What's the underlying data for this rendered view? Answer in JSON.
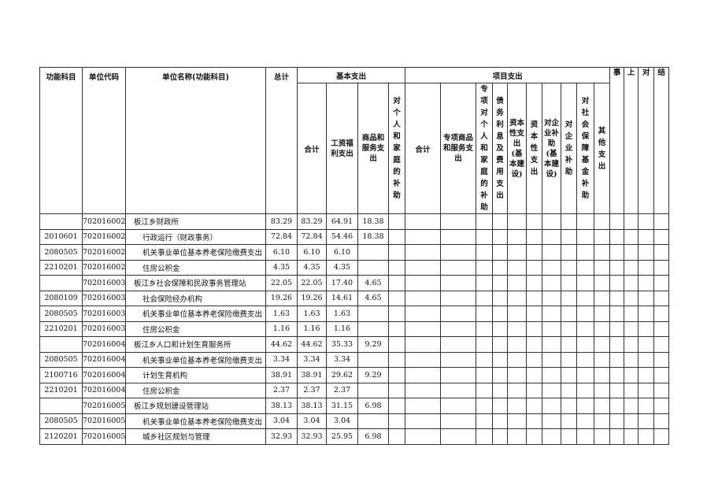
{
  "headers": {
    "func_subject": "功能科目",
    "unit_code": "单位代码",
    "unit_name": "单位名称(功能科目)",
    "total": "总计",
    "basic": "基本支出",
    "project": "项目支出",
    "extra": [
      "事",
      "上",
      "对",
      "结"
    ],
    "basic_cols": [
      "合计",
      "工资福利支出",
      "商品和服务支出",
      "对个人和家庭的补助"
    ],
    "project_cols": [
      "合计",
      "专项商品和服务支出",
      "专项对个人和家庭的补助",
      "债务利息及费用支出",
      "资本性支出(基本建设)",
      "资本性支出",
      "对企业补助(基本建设)",
      "对企业补助",
      "对社会保障基金补助",
      "其他支出"
    ]
  },
  "rows": [
    {
      "func": "",
      "code": "702016002",
      "name": "板江乡财政所",
      "sub": false,
      "total": "83.29",
      "basic_total": "83.29",
      "wages": "64.91",
      "goods": "18.38"
    },
    {
      "func": "2010601",
      "code": "702016002",
      "name": "行政运行（财政事务）",
      "sub": true,
      "total": "72.84",
      "basic_total": "72.84",
      "wages": "54.46",
      "goods": "18.38"
    },
    {
      "func": "2080505",
      "code": "702016002",
      "name": "机关事业单位基本养老保险缴费支出",
      "sub": true,
      "total": "6.10",
      "basic_total": "6.10",
      "wages": "6.10",
      "goods": ""
    },
    {
      "func": "2210201",
      "code": "702016002",
      "name": "住房公积金",
      "sub": true,
      "total": "4.35",
      "basic_total": "4.35",
      "wages": "4.35",
      "goods": ""
    },
    {
      "func": "",
      "code": "702016003",
      "name": "板江乡社会保障和民政事务管理站",
      "sub": false,
      "total": "22.05",
      "basic_total": "22.05",
      "wages": "17.40",
      "goods": "4.65"
    },
    {
      "func": "2080109",
      "code": "702016003",
      "name": "社会保险经办机构",
      "sub": true,
      "total": "19.26",
      "basic_total": "19.26",
      "wages": "14.61",
      "goods": "4.65"
    },
    {
      "func": "2080505",
      "code": "702016003",
      "name": "机关事业单位基本养老保险缴费支出",
      "sub": true,
      "total": "1.63",
      "basic_total": "1.63",
      "wages": "1.63",
      "goods": ""
    },
    {
      "func": "2210201",
      "code": "702016003",
      "name": "住房公积金",
      "sub": true,
      "total": "1.16",
      "basic_total": "1.16",
      "wages": "1.16",
      "goods": ""
    },
    {
      "func": "",
      "code": "702016004",
      "name": "板江乡人口和计划生育服务所",
      "sub": false,
      "total": "44.62",
      "basic_total": "44.62",
      "wages": "35.33",
      "goods": "9.29"
    },
    {
      "func": "2080505",
      "code": "702016004",
      "name": "机关事业单位基本养老保险缴费支出",
      "sub": true,
      "total": "3.34",
      "basic_total": "3.34",
      "wages": "3.34",
      "goods": ""
    },
    {
      "func": "2100716",
      "code": "702016004",
      "name": "计划生育机构",
      "sub": true,
      "total": "38.91",
      "basic_total": "38.91",
      "wages": "29.62",
      "goods": "9.29"
    },
    {
      "func": "2210201",
      "code": "702016004",
      "name": "住房公积金",
      "sub": true,
      "total": "2.37",
      "basic_total": "2.37",
      "wages": "2.37",
      "goods": ""
    },
    {
      "func": "",
      "code": "702016005",
      "name": "板江乡规划建设管理站",
      "sub": false,
      "total": "38.13",
      "basic_total": "38.13",
      "wages": "31.15",
      "goods": "6.98"
    },
    {
      "func": "2080505",
      "code": "702016005",
      "name": "机关事业单位基本养老保险缴费支出",
      "sub": true,
      "total": "3.04",
      "basic_total": "3.04",
      "wages": "3.04",
      "goods": ""
    },
    {
      "func": "2120201",
      "code": "702016005",
      "name": "城乡社区规划与管理",
      "sub": true,
      "total": "32.93",
      "basic_total": "32.93",
      "wages": "25.95",
      "goods": "6.98"
    }
  ]
}
